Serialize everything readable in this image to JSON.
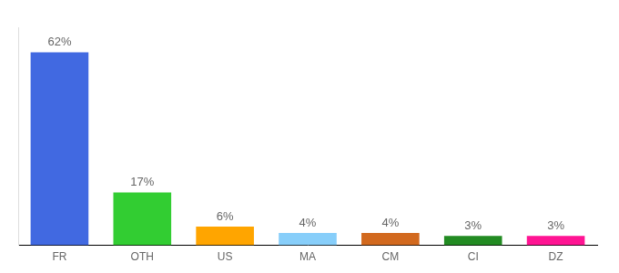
{
  "chart_data": {
    "type": "bar",
    "categories": [
      "FR",
      "OTH",
      "US",
      "MA",
      "CM",
      "CI",
      "DZ"
    ],
    "values": [
      62,
      17,
      6,
      4,
      4,
      3,
      3
    ],
    "value_labels": [
      "62%",
      "17%",
      "6%",
      "4%",
      "4%",
      "3%",
      "3%"
    ],
    "colors": [
      "#4169e1",
      "#32cd32",
      "#ffa500",
      "#87cefa",
      "#d2691e",
      "#228b22",
      "#ff1493"
    ],
    "ylim": [
      0,
      70
    ],
    "grid": false,
    "data_labels": true,
    "tick_labels": "x"
  }
}
